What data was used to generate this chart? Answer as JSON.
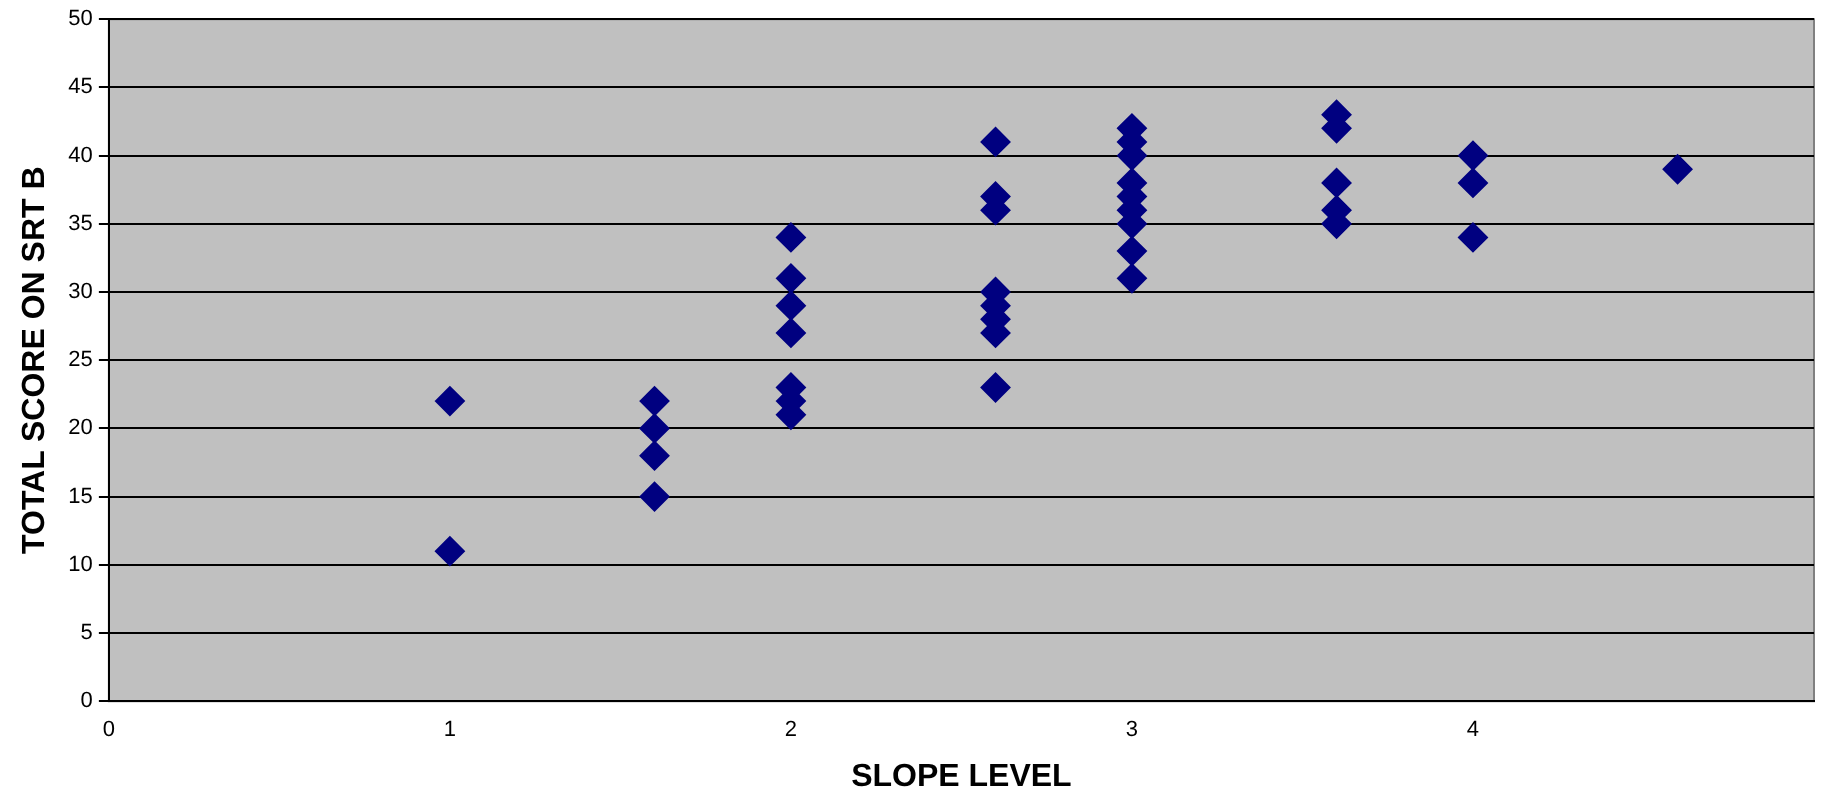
{
  "chart_data": {
    "type": "scatter",
    "xlabel": "SLOPE LEVEL",
    "ylabel": "TOTAL SCORE ON SRT B",
    "x": [
      1,
      1,
      1.6,
      1.6,
      1.6,
      1.6,
      2,
      2,
      2,
      2,
      2,
      2,
      2,
      2.6,
      2.6,
      2.6,
      2.6,
      2.6,
      2.6,
      2.6,
      2.6,
      3,
      3,
      3,
      3,
      3,
      3,
      3,
      3,
      3,
      3.6,
      3.6,
      3.6,
      3.6,
      3.6,
      4,
      4,
      4,
      4.6
    ],
    "values": [
      22,
      11,
      22,
      20,
      18,
      15,
      34,
      31,
      29,
      27,
      23,
      22,
      21,
      41,
      37,
      36,
      30,
      29,
      28,
      27,
      23,
      42,
      41,
      40,
      38,
      37,
      36,
      35,
      33,
      31,
      43,
      42,
      38,
      36,
      35,
      40,
      38,
      34,
      39
    ],
    "color": "#000080",
    "marker": "diamond",
    "xlim": [
      0,
      5
    ],
    "xticks": [
      0,
      1,
      2,
      3,
      4
    ],
    "ylim": [
      0,
      50
    ],
    "yticks": [
      0,
      5,
      10,
      15,
      20,
      25,
      30,
      35,
      40,
      45,
      50
    ],
    "grid": "y",
    "legend": false
  }
}
